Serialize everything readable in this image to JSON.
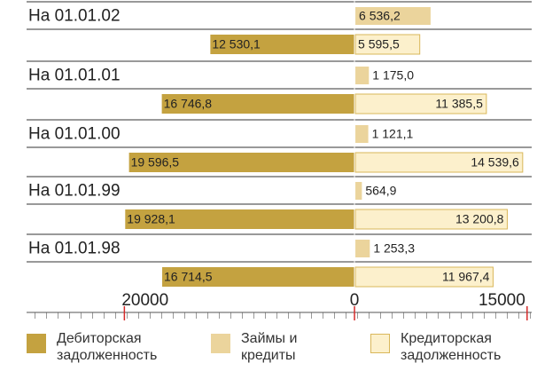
{
  "chart_data": {
    "type": "diverging-bar",
    "categories": [
      "На 01.01.02",
      "На 01.01.01",
      "На 01.01.00",
      "На 01.01.99",
      "На 01.01.98"
    ],
    "series": [
      {
        "name": "Дебиторская задолженность",
        "color": "#c4a240",
        "direction": "left",
        "values": [
          12530.1,
          16746.8,
          19596.5,
          19928.1,
          16714.5
        ],
        "value_labels": [
          "12 530,1",
          "16 746,8",
          "19 596,5",
          "19 928,1",
          "16 714,5"
        ]
      },
      {
        "name": "Займы и кредиты",
        "color": "#ebd49c",
        "direction": "right",
        "values": [
          6536.2,
          1175.0,
          1121.1,
          564.9,
          1253.3
        ],
        "value_labels": [
          "6 536,2",
          "1 175,0",
          "1 121,1",
          "564,9",
          "1 253,3"
        ]
      },
      {
        "name": "Кредиторская задолженность",
        "color": "#fcf0cc",
        "direction": "right",
        "values": [
          5595.5,
          11385.5,
          14539.6,
          13200.8,
          11967.4
        ],
        "value_labels": [
          "5 595,5",
          "11 385,5",
          "14 539,6",
          "13 200,8",
          "11 967,4"
        ]
      }
    ],
    "xlim": [
      -28500,
      15400
    ],
    "xticks": [
      {
        "value": -20000,
        "label": "20000"
      },
      0,
      15000
    ]
  }
}
